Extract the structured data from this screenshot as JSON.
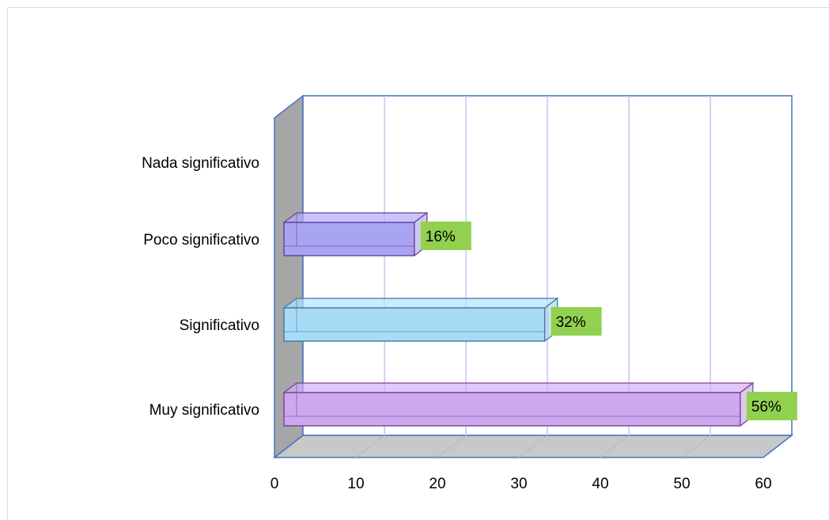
{
  "chart_data": {
    "type": "bar",
    "orientation": "horizontal",
    "categories": [
      "Nada significativo",
      "Poco significativo",
      "Significativo",
      "Muy significativo"
    ],
    "values": [
      0,
      16,
      32,
      56
    ],
    "data_labels": [
      "",
      "16%",
      "32%",
      "56%"
    ],
    "bar_colors": [
      "#a9a4f2",
      "#a9a4f2",
      "#a8dbf5",
      "#cca8ee"
    ],
    "bar_edge_colors": [
      "#6a3d9a",
      "#6a3d9a",
      "#3d7aa8",
      "#7b3f9a"
    ],
    "label_background": "#92d050",
    "xlim": [
      0,
      60
    ],
    "x_ticks": [
      "0",
      "10",
      "20",
      "30",
      "40",
      "50",
      "60"
    ],
    "grid": true,
    "style": "3d",
    "title": "",
    "xlabel": "",
    "ylabel": ""
  }
}
